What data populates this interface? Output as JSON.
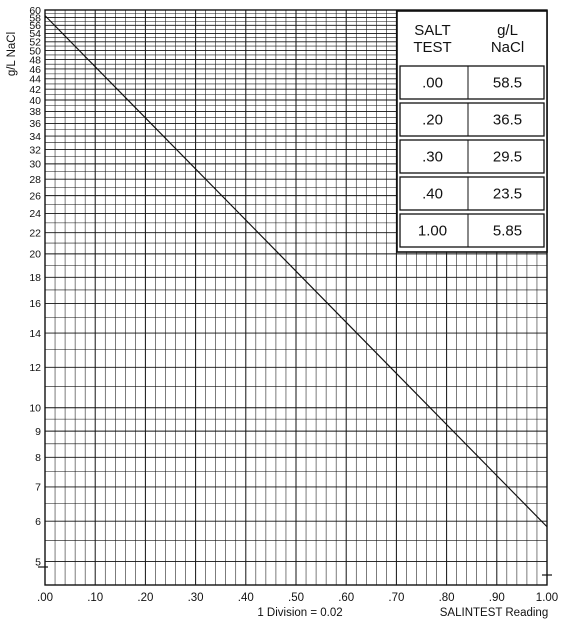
{
  "chart_data": {
    "type": "line",
    "title": "",
    "xlabel": "SALINTEST Reading",
    "ylabel": "g/L NaCl",
    "note": "1 Division = 0.02",
    "xlim": [
      0.0,
      1.0
    ],
    "ylim": [
      4.5,
      60
    ],
    "y_scale": "log",
    "grid": true,
    "x_ticks": [
      0,
      0.1,
      0.2,
      0.3,
      0.4,
      0.5,
      0.6,
      0.7,
      0.8,
      0.9,
      1.0
    ],
    "x_tick_labels": [
      ".00",
      ".10",
      ".20",
      ".30",
      ".40",
      ".50",
      ".60",
      ".70",
      ".80",
      ".90",
      "1.00"
    ],
    "y_ticks": [
      5,
      6,
      7,
      8,
      9,
      10,
      12,
      14,
      16,
      18,
      20,
      22,
      24,
      26,
      28,
      30,
      32,
      34,
      36,
      38,
      40,
      42,
      44,
      46,
      48,
      50,
      52,
      54,
      56,
      58,
      60
    ],
    "y_tick_labels": [
      "5",
      "6",
      "7",
      "8",
      "9",
      "10",
      "12",
      "14",
      "16",
      "18",
      "20",
      "22",
      "24",
      "26",
      "28",
      "30",
      "32",
      "34",
      "36",
      "38",
      "40",
      "42",
      "44",
      "46",
      "48",
      "50",
      "52",
      "54",
      "56",
      "58",
      "60"
    ],
    "series": [
      {
        "x": [
          0.0,
          1.0
        ],
        "y": [
          58.5,
          5.85
        ]
      }
    ],
    "table": {
      "headers": [
        [
          "SALT",
          "TEST"
        ],
        [
          "g/L",
          "NaCl"
        ]
      ],
      "rows": [
        [
          ".00",
          "58.5"
        ],
        [
          ".20",
          "36.5"
        ],
        [
          ".30",
          "29.5"
        ],
        [
          ".40",
          "23.5"
        ],
        [
          "1.00",
          "5.85"
        ]
      ]
    }
  }
}
